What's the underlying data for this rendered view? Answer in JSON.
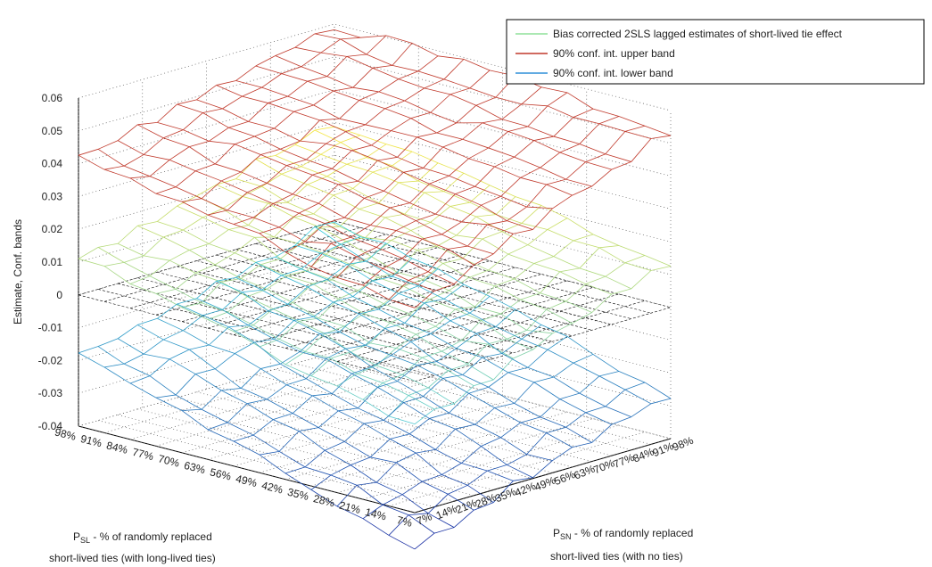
{
  "chart_data": {
    "type": "surface",
    "zlabel": "Estimate, Conf. bands",
    "xlabel": {
      "main": "P",
      "sub": "SL",
      "rest": " - % of randomly replaced",
      "line2": "short-lived ties (with long-lived ties)"
    },
    "ylabel": {
      "main": "P",
      "sub": "SN",
      "rest": " - % of randomly replaced",
      "line2": "short-lived ties (with no ties)"
    },
    "zlim": [
      -0.04,
      0.06
    ],
    "zticks": [
      "0.06",
      "0.05",
      "0.04",
      "0.03",
      "0.02",
      "0.01",
      "0",
      "-0.01",
      "-0.02",
      "-0.03",
      "-0.04"
    ],
    "xticks": [
      "98%",
      "91%",
      "84%",
      "77%",
      "70%",
      "63%",
      "56%",
      "49%",
      "42%",
      "35%",
      "28%",
      "21%",
      "14%",
      "7%"
    ],
    "yticks": [
      "7%",
      "14%",
      "21%",
      "28%",
      "35%",
      "42%",
      "49%",
      "56%",
      "63%",
      "70%",
      "77%",
      "84%",
      "91%",
      "98%"
    ],
    "grid": true,
    "legend_position": "top-right",
    "series": [
      {
        "name": "Bias corrected 2SLS lagged estimates of short-lived tie effect",
        "color": "#8fe09a",
        "corners": {
          "near_left": 0.011,
          "far_left": 0.03,
          "far_right": 0.014,
          "near_right": -0.013
        }
      },
      {
        "name": "90% conf. int. upper band",
        "color": "#c0392b",
        "corners": {
          "near_left": 0.041,
          "far_left": 0.06,
          "far_right": 0.054,
          "near_right": 0.023
        }
      },
      {
        "name": "90% conf. int. lower band",
        "color": "#2f8fd8",
        "corners": {
          "near_left": -0.019,
          "far_left": 0.0,
          "far_right": -0.026,
          "near_right": -0.05
        }
      }
    ]
  }
}
